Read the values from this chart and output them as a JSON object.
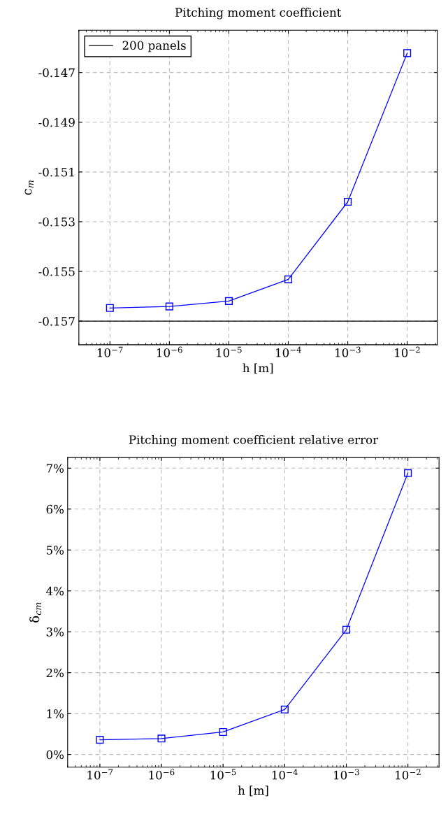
{
  "chart_data": [
    {
      "type": "line",
      "title": "Pitching moment coefficient",
      "xlabel": "h [m]",
      "ylabel": "c$_{m}$",
      "x": [
        1e-07,
        1e-06,
        1e-05,
        0.0001,
        0.001,
        0.01
      ],
      "series": [
        {
          "color": "#0000ff",
          "values": [
            -0.15647,
            -0.15641,
            -0.15619,
            -0.15532,
            -0.1522,
            -0.14622
          ],
          "marker": "square"
        },
        {
          "name": "200 panels",
          "color": "#000000",
          "x": [
            3e-08,
            0.032
          ],
          "values": [
            -0.157,
            -0.157
          ],
          "marker": "none"
        }
      ],
      "log": "x",
      "xlim": [
        3e-08,
        0.032
      ],
      "ylim": [
        -0.15795,
        -0.1453
      ],
      "xticks": [
        {
          "value": 1e-07,
          "label": "10$^{−7}$"
        },
        {
          "value": 1e-06,
          "label": "10$^{−6}$"
        },
        {
          "value": 1e-05,
          "label": "10$^{−5}$"
        },
        {
          "value": 0.0001,
          "label": "10$^{−4}$"
        },
        {
          "value": 0.001,
          "label": "10$^{−3}$"
        },
        {
          "value": 0.01,
          "label": "10$^{−2}$"
        }
      ],
      "yticks": [
        {
          "value": -0.157,
          "label": "-0.157"
        },
        {
          "value": -0.155,
          "label": "-0.155"
        },
        {
          "value": -0.153,
          "label": "-0.153"
        },
        {
          "value": -0.151,
          "label": "-0.151"
        },
        {
          "value": -0.149,
          "label": "-0.149"
        },
        {
          "value": -0.147,
          "label": "-0.147"
        }
      ],
      "grid": true,
      "legend": "top left",
      "line_style": "solid"
    },
    {
      "type": "line",
      "title": "Pitching moment coefficient relative error",
      "xlabel": "h [m]",
      "ylabel": "δ$_{cm}$",
      "x": [
        1e-07,
        1e-06,
        1e-05,
        0.0001,
        0.001,
        0.01
      ],
      "series": [
        {
          "color": "#0000ff",
          "values": [
            0.36,
            0.39,
            0.55,
            1.1,
            3.05,
            6.88
          ],
          "marker": "square"
        }
      ],
      "log": "x",
      "xlim": [
        3e-08,
        0.032
      ],
      "ylim": [
        -0.31,
        7.26
      ],
      "xticks": [
        {
          "value": 1e-07,
          "label": "10$^{−7}$"
        },
        {
          "value": 1e-06,
          "label": "10$^{−6}$"
        },
        {
          "value": 1e-05,
          "label": "10$^{−5}$"
        },
        {
          "value": 0.0001,
          "label": "10$^{−4}$"
        },
        {
          "value": 0.001,
          "label": "10$^{−3}$"
        },
        {
          "value": 0.01,
          "label": "10$^{−2}$"
        }
      ],
      "yticks": [
        {
          "value": 0,
          "label": "0%"
        },
        {
          "value": 1,
          "label": "1%"
        },
        {
          "value": 2,
          "label": "2%"
        },
        {
          "value": 3,
          "label": "3%"
        },
        {
          "value": 4,
          "label": "4%"
        },
        {
          "value": 5,
          "label": "5%"
        },
        {
          "value": 6,
          "label": "6%"
        },
        {
          "value": 7,
          "label": "7%"
        }
      ],
      "grid": true,
      "line_style": "solid"
    }
  ]
}
